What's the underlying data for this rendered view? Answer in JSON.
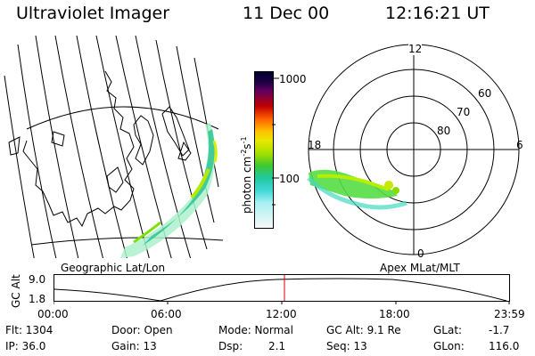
{
  "header": {
    "title": "Ultraviolet Imager",
    "date": "11 Dec 00",
    "time": "12:16:21 UT"
  },
  "colorbar": {
    "unit_label": "photon cm",
    "unit_sup1": "-2",
    "unit_mid": "s",
    "unit_sup2": "-1",
    "tick_top": "1000",
    "tick_mid": "100"
  },
  "left_panel": {
    "label": "Geographic Lat/Lon"
  },
  "right_panel": {
    "label": "Apex MLat/MLT",
    "mlt_labels": {
      "top": "12",
      "left": "18",
      "right": "6",
      "bottom": "0"
    },
    "lat_labels": {
      "outer": "60",
      "middle": "70",
      "inner": "80"
    }
  },
  "timeline": {
    "axis_label": "GC Alt",
    "y_top": "9.0",
    "y_bottom": "1.8",
    "ticks": [
      "00:00",
      "06:00",
      "12:00",
      "18:00",
      "23:59"
    ],
    "marker_color": "#e00000"
  },
  "info": {
    "flt": "Flt: 1304",
    "ip": "IP: 36.0",
    "door": "Door: Open",
    "gain": "Gain: 13",
    "mode": "Mode: Normal",
    "dsp_label": "Dsp:",
    "dsp_value": "2.1",
    "gcalt": "GC Alt: 9.1 Re",
    "seq": "Seq: 13",
    "glat_label": "GLat:",
    "glat_value": "-1.7",
    "glon_label": "GLon:",
    "glon_value": "116.0"
  }
}
